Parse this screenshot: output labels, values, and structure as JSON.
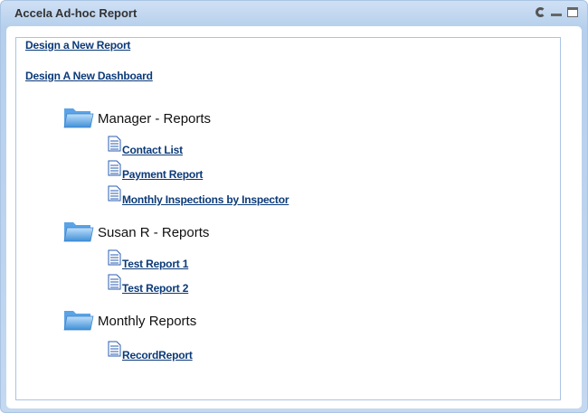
{
  "window": {
    "title": "Accela Ad-hoc Report",
    "controls": [
      "refresh-icon",
      "minimize-icon",
      "maximize-icon"
    ]
  },
  "links": {
    "design_report": "Design a New Report",
    "design_dashboard": "Design A New Dashboard"
  },
  "folders": [
    {
      "name": "Manager - Reports",
      "reports": [
        "Contact List",
        "Payment Report",
        "Monthly Inspections by Inspector"
      ]
    },
    {
      "name": "Susan R - Reports",
      "reports": [
        "Test Report 1",
        "Test Report 2"
      ]
    },
    {
      "name": "Monthly Reports",
      "reports": [
        "RecordReport"
      ]
    }
  ]
}
